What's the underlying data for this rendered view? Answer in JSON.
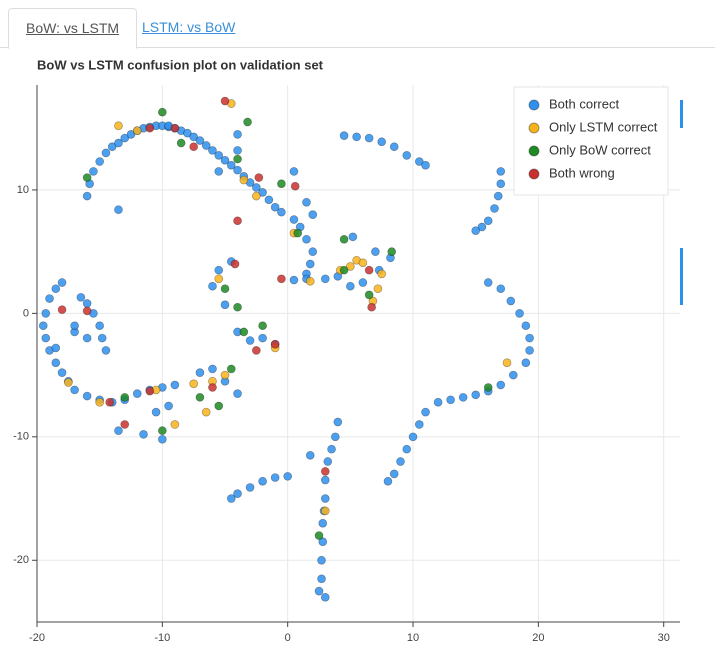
{
  "tabs": [
    "BoW: vs LSTM",
    "LSTM: vs BoW"
  ],
  "chart_data": {
    "type": "scatter",
    "title": "BoW vs LSTM confusion plot on validation set",
    "xlim": [
      -20,
      31.3
    ],
    "ylim": [
      -25,
      18.5
    ],
    "xticks": [
      -20,
      -10,
      0,
      10,
      20,
      30
    ],
    "yticks": [
      -20,
      -10,
      0,
      10
    ],
    "grid": true,
    "legend": "top-right",
    "series": [
      {
        "name": "Both correct",
        "color": "#2e8fec",
        "x": [
          -16,
          -15.8,
          -15.5,
          -15,
          -14.5,
          -14,
          -13.5,
          -13,
          -12.5,
          -12,
          -11.5,
          -11,
          -10.5,
          -10,
          -9.5,
          -9,
          -8.5,
          -8,
          -7.5,
          -7,
          -6.5,
          -6,
          -5.5,
          -5,
          -4.5,
          -4,
          -3.5,
          -3,
          -2.5,
          -2,
          -1.5,
          -1,
          -0.5,
          0.5,
          1,
          1.5,
          2,
          1.8,
          1.5,
          -18,
          -18.5,
          -19,
          -19.3,
          -19.5,
          -19.3,
          -19,
          -18.5,
          -18,
          -17.5,
          -17,
          -16,
          -15,
          -14,
          -13,
          -12,
          -11,
          -10,
          -9,
          -16.5,
          -16,
          -15.5,
          -15,
          -14.8,
          -14.5,
          -17,
          -18.5,
          -16,
          4.5,
          5.5,
          6.5,
          7.5,
          8.5,
          9.5,
          10.5,
          11,
          17,
          17,
          16.8,
          16.5,
          16,
          15.5,
          15,
          16,
          17,
          17.8,
          18.5,
          19,
          19.3,
          19.3,
          19,
          18,
          17,
          16,
          15,
          14,
          13,
          12,
          11,
          10.5,
          10,
          9.5,
          9,
          8.5,
          8,
          -4.5,
          -4,
          -3,
          -2,
          -1,
          0,
          4,
          3.8,
          3.5,
          3.2,
          3,
          3,
          2.9,
          2.8,
          2.8,
          2.7,
          2.7,
          2.5,
          3,
          1.8,
          0.5,
          1.5,
          3,
          4,
          5,
          6,
          7.3,
          8.2,
          7,
          5.2,
          0.5,
          1.5,
          2,
          -4.5,
          -5.5,
          -6,
          -5,
          -4,
          -3,
          -2,
          -1,
          -6,
          -5,
          -4,
          -7,
          -9.5,
          -10,
          -11.5,
          -13.5,
          -10.5,
          -13.5,
          -4,
          -4,
          -9.5,
          -5.5,
          -17
        ],
        "y": [
          9.5,
          10.5,
          11.5,
          12.3,
          13,
          13.5,
          13.8,
          14.2,
          14.5,
          14.8,
          15,
          15.1,
          15.2,
          15.2,
          15.1,
          15,
          14.8,
          14.6,
          14.3,
          14,
          13.6,
          13.2,
          12.8,
          12.4,
          12,
          11.6,
          11.1,
          10.6,
          10.2,
          9.8,
          9.2,
          8.6,
          8.2,
          7.6,
          7,
          6,
          5,
          4,
          3.2,
          2.5,
          2,
          1.2,
          0,
          -1,
          -2,
          -3,
          -4,
          -4.8,
          -5.5,
          -6.2,
          -6.7,
          -7,
          -7.2,
          -7,
          -6.5,
          -6.2,
          -6,
          -5.8,
          1.3,
          0.8,
          0,
          -1,
          -2,
          -3,
          -1.5,
          -2.8,
          -2,
          14.4,
          14.3,
          14.2,
          13.9,
          13.5,
          12.8,
          12.3,
          12,
          11.5,
          10.5,
          9.5,
          8.5,
          7.5,
          7,
          6.7,
          2.5,
          2,
          1,
          0,
          -1,
          -2,
          -3,
          -4,
          -5,
          -5.8,
          -6.3,
          -6.6,
          -6.8,
          -7,
          -7.2,
          -8,
          -9,
          -10,
          -11,
          -12,
          -13,
          -13.6,
          -15,
          -14.6,
          -14.1,
          -13.6,
          -13.3,
          -13.2,
          -8.8,
          -10,
          -11,
          -12,
          -13.5,
          -15,
          -16,
          -17,
          -18.5,
          -20,
          -21.5,
          -22.5,
          -23,
          -11.5,
          2.7,
          2.8,
          2.8,
          3,
          2.2,
          2.5,
          3.5,
          4.5,
          5,
          6.2,
          11.5,
          9,
          8,
          4.2,
          3.5,
          2.2,
          0.7,
          -1.5,
          -2.2,
          -2,
          -2.5,
          -4.5,
          -5.5,
          -6.5,
          -4.8,
          -7.5,
          -10.2,
          -9.8,
          -9.5,
          -8,
          8.4,
          14.5,
          13.2,
          15.2,
          11.5,
          -1
        ]
      },
      {
        "name": "Only LSTM correct",
        "color": "#f8b31b",
        "x": [
          -13.5,
          -12,
          -9,
          -7.5,
          -6.5,
          -6,
          -5.5,
          -5,
          -4.5,
          -3.5,
          -2.5,
          -1,
          0.5,
          1.8,
          3,
          4.2,
          5,
          5.5,
          6,
          6.8,
          7.2,
          7.5,
          17.5,
          -10.5,
          -17.5,
          -15
        ],
        "y": [
          15.2,
          14.8,
          -9,
          -5.7,
          -8,
          -5.5,
          2.8,
          -5,
          17,
          10.8,
          9.5,
          -2.8,
          6.5,
          2.6,
          -16,
          3.5,
          3.8,
          4.3,
          4.1,
          1,
          2,
          3.2,
          -4,
          -6.2,
          -5.6,
          -7.2
        ]
      },
      {
        "name": "Only BoW correct",
        "color": "#1d8a22",
        "x": [
          -16,
          -10,
          -10,
          -13,
          -8.5,
          -5,
          -4,
          -3.5,
          -2,
          -4.5,
          -7,
          -5.5,
          -3.2,
          -4,
          -0.5,
          0.8,
          2.5,
          4.5,
          4.5,
          6.5,
          8.3,
          16
        ],
        "y": [
          11,
          16.3,
          -9.5,
          -6.8,
          13.8,
          2,
          0.5,
          -1.5,
          -1,
          -4.5,
          -6.8,
          -7.5,
          15.5,
          12.5,
          10.5,
          6.5,
          -18,
          6,
          3.5,
          1.5,
          5,
          -6
        ]
      },
      {
        "name": "Both wrong",
        "color": "#c9312e",
        "x": [
          -18,
          -16,
          -14.2,
          -13,
          -11,
          -11,
          -9,
          -7.5,
          -5,
          -4,
          -1,
          -2.5,
          -2.3,
          -0.5,
          0.6,
          3,
          6.7,
          6.5,
          -4.2,
          -6
        ],
        "y": [
          0.3,
          0.2,
          -7.2,
          -9,
          -6.3,
          15,
          15,
          13.5,
          17.2,
          7.5,
          -2.5,
          -3,
          11,
          2.8,
          10.3,
          -12.8,
          0.5,
          3.5,
          4,
          -6
        ]
      }
    ]
  }
}
